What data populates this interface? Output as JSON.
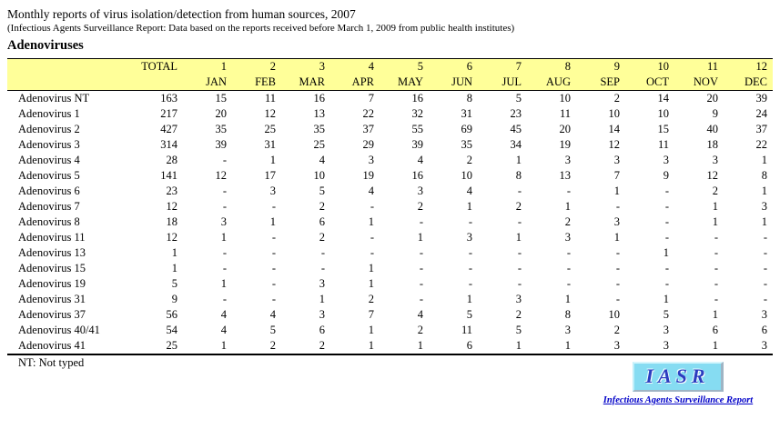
{
  "header": {
    "title": "Monthly reports of virus isolation/detection from human sources, 2007",
    "subtitle": "(Infectious Agents Surveillance Report: Data based on the reports received before March 1, 2009 from public health institutes)",
    "section": "Adenoviruses"
  },
  "table": {
    "total_label": "TOTAL",
    "month_numbers": [
      "1",
      "2",
      "3",
      "4",
      "5",
      "6",
      "7",
      "8",
      "9",
      "10",
      "11",
      "12"
    ],
    "month_names": [
      "JAN",
      "FEB",
      "MAR",
      "APR",
      "MAY",
      "JUN",
      "JUL",
      "AUG",
      "SEP",
      "OCT",
      "NOV",
      "DEC"
    ],
    "rows": [
      {
        "label": "Adenovirus NT",
        "total": "163",
        "values": [
          "15",
          "11",
          "16",
          "7",
          "16",
          "8",
          "5",
          "10",
          "2",
          "14",
          "20",
          "39"
        ]
      },
      {
        "label": "Adenovirus 1",
        "total": "217",
        "values": [
          "20",
          "12",
          "13",
          "22",
          "32",
          "31",
          "23",
          "11",
          "10",
          "10",
          "9",
          "24"
        ]
      },
      {
        "label": "Adenovirus 2",
        "total": "427",
        "values": [
          "35",
          "25",
          "35",
          "37",
          "55",
          "69",
          "45",
          "20",
          "14",
          "15",
          "40",
          "37"
        ]
      },
      {
        "label": "Adenovirus 3",
        "total": "314",
        "values": [
          "39",
          "31",
          "25",
          "29",
          "39",
          "35",
          "34",
          "19",
          "12",
          "11",
          "18",
          "22"
        ]
      },
      {
        "label": "Adenovirus 4",
        "total": "28",
        "values": [
          "-",
          "1",
          "4",
          "3",
          "4",
          "2",
          "1",
          "3",
          "3",
          "3",
          "3",
          "1"
        ]
      },
      {
        "label": "Adenovirus 5",
        "total": "141",
        "values": [
          "12",
          "17",
          "10",
          "19",
          "16",
          "10",
          "8",
          "13",
          "7",
          "9",
          "12",
          "8"
        ]
      },
      {
        "label": "Adenovirus 6",
        "total": "23",
        "values": [
          "-",
          "3",
          "5",
          "4",
          "3",
          "4",
          "-",
          "-",
          "1",
          "-",
          "2",
          "1"
        ]
      },
      {
        "label": "Adenovirus 7",
        "total": "12",
        "values": [
          "-",
          "-",
          "2",
          "-",
          "2",
          "1",
          "2",
          "1",
          "-",
          "-",
          "1",
          "3"
        ]
      },
      {
        "label": "Adenovirus 8",
        "total": "18",
        "values": [
          "3",
          "1",
          "6",
          "1",
          "-",
          "-",
          "-",
          "2",
          "3",
          "-",
          "1",
          "1"
        ]
      },
      {
        "label": "Adenovirus 11",
        "total": "12",
        "values": [
          "1",
          "-",
          "2",
          "-",
          "1",
          "3",
          "1",
          "3",
          "1",
          "-",
          "-",
          "-"
        ]
      },
      {
        "label": "Adenovirus 13",
        "total": "1",
        "values": [
          "-",
          "-",
          "-",
          "-",
          "-",
          "-",
          "-",
          "-",
          "-",
          "1",
          "-",
          "-"
        ]
      },
      {
        "label": "Adenovirus 15",
        "total": "1",
        "values": [
          "-",
          "-",
          "-",
          "1",
          "-",
          "-",
          "-",
          "-",
          "-",
          "-",
          "-",
          "-"
        ]
      },
      {
        "label": "Adenovirus 19",
        "total": "5",
        "values": [
          "1",
          "-",
          "3",
          "1",
          "-",
          "-",
          "-",
          "-",
          "-",
          "-",
          "-",
          "-"
        ]
      },
      {
        "label": "Adenovirus 31",
        "total": "9",
        "values": [
          "-",
          "-",
          "1",
          "2",
          "-",
          "1",
          "3",
          "1",
          "-",
          "1",
          "-",
          "-"
        ]
      },
      {
        "label": "Adenovirus 37",
        "total": "56",
        "values": [
          "4",
          "4",
          "3",
          "7",
          "4",
          "5",
          "2",
          "8",
          "10",
          "5",
          "1",
          "3"
        ]
      },
      {
        "label": "Adenovirus 40/41",
        "total": "54",
        "values": [
          "4",
          "5",
          "6",
          "1",
          "2",
          "11",
          "5",
          "3",
          "2",
          "3",
          "6",
          "6"
        ]
      },
      {
        "label": "Adenovirus 41",
        "total": "25",
        "values": [
          "1",
          "2",
          "2",
          "1",
          "1",
          "6",
          "1",
          "1",
          "3",
          "3",
          "1",
          "3"
        ]
      }
    ]
  },
  "footnote": "NT: Not typed",
  "logo": {
    "acronym": "IASR",
    "caption": "Infectious Agents Surveillance Report"
  },
  "colors": {
    "header_bg": "#FFFF99",
    "logo_bg": "#86DCF2",
    "logo_text": "#2B3DC0",
    "caption_text": "#0000C8"
  }
}
